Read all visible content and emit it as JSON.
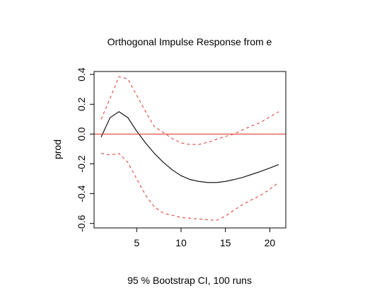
{
  "chart_data": {
    "type": "line",
    "title": "Orthogonal Impulse Response from e",
    "xlabel": "95 % Bootstrap CI,  100 runs",
    "ylabel": "prod",
    "xlim": [
      0.2,
      21.8
    ],
    "ylim": [
      -0.63,
      0.42
    ],
    "xticks": [
      5,
      10,
      15,
      20
    ],
    "yticks": [
      -0.6,
      -0.4,
      -0.2,
      0.0,
      0.2,
      0.4
    ],
    "ytick_labels": [
      "-0.6",
      "-0.4",
      "-0.2",
      "0.0",
      "0.2",
      "0.4"
    ],
    "reference_line": {
      "y": 0,
      "color": "#e0433a"
    },
    "x": [
      1,
      2,
      3,
      4,
      5,
      6,
      7,
      8,
      9,
      10,
      11,
      12,
      13,
      14,
      15,
      16,
      17,
      18,
      19,
      20,
      21
    ],
    "series": [
      {
        "style": "solid",
        "color": "#000000",
        "values": [
          -0.02,
          0.11,
          0.15,
          0.11,
          0.02,
          -0.06,
          -0.13,
          -0.19,
          -0.24,
          -0.28,
          -0.305,
          -0.318,
          -0.325,
          -0.325,
          -0.318,
          -0.305,
          -0.29,
          -0.27,
          -0.25,
          -0.228,
          -0.205
        ]
      },
      {
        "style": "dashed",
        "color": "#e0433a",
        "values": [
          0.1,
          0.24,
          0.385,
          0.37,
          0.26,
          0.15,
          0.05,
          0.01,
          -0.03,
          -0.06,
          -0.07,
          -0.07,
          -0.055,
          -0.035,
          -0.015,
          0.0,
          0.03,
          0.055,
          0.08,
          0.115,
          0.15
        ]
      },
      {
        "style": "dashed",
        "color": "#e0433a",
        "values": [
          -0.13,
          -0.14,
          -0.13,
          -0.19,
          -0.3,
          -0.41,
          -0.49,
          -0.53,
          -0.545,
          -0.56,
          -0.565,
          -0.57,
          -0.575,
          -0.58,
          -0.55,
          -0.51,
          -0.47,
          -0.44,
          -0.41,
          -0.37,
          -0.325
        ]
      }
    ]
  }
}
